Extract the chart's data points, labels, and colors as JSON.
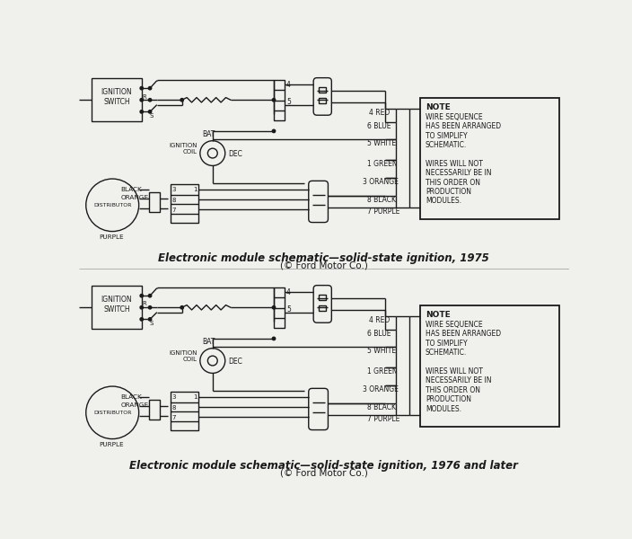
{
  "bg_color": "#f0f0ec",
  "line_color": "#1a1a1a",
  "title1": "Electronic module schematic—solid-state ignition, 1975",
  "title2": "(© Ford Motor Co.)",
  "title3": "Electronic module schematic—solid-state ignition, 1976 and later",
  "title4": "(© Ford Motor Co.)",
  "lw": 1.0,
  "note_title_fs": 6.5,
  "note_body_fs": 5.5,
  "label_fs": 5.5,
  "title_fs": 8.5,
  "sub_fs": 7.5
}
